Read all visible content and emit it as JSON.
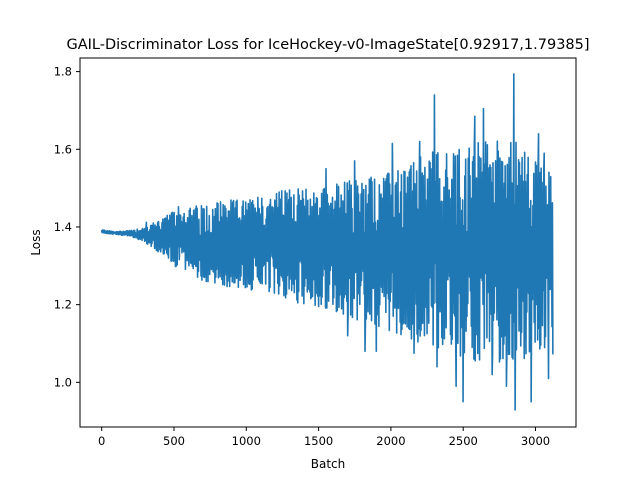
{
  "chart_data": {
    "type": "line",
    "title": "GAIL-Discriminator Loss for IceHockey-v0-ImageState[0.92917,1.79385]",
    "xlabel": "Batch",
    "ylabel": "Loss",
    "xlim": [
      -150,
      3280
    ],
    "ylim": [
      0.885,
      1.835
    ],
    "x_ticks": [
      0,
      500,
      1000,
      1500,
      2000,
      2500,
      3000
    ],
    "y_ticks": [
      1.0,
      1.2,
      1.4,
      1.6,
      1.8
    ],
    "x_tick_labels": [
      "0",
      "500",
      "1000",
      "1500",
      "2000",
      "2500",
      "3000"
    ],
    "y_tick_labels": [
      "1.0",
      "1.2",
      "1.4",
      "1.6",
      "1.8"
    ],
    "grid": false,
    "legend": "none",
    "series": [
      {
        "color": "#1f77b4",
        "note_range": [
          0.92917,
          1.79385
        ],
        "x": [
          0,
          100,
          200,
          300,
          400,
          500,
          600,
          700,
          800,
          900,
          1000,
          1100,
          1200,
          1300,
          1400,
          1500,
          1600,
          1700,
          1800,
          1900,
          2000,
          2100,
          2200,
          2300,
          2400,
          2500,
          2600,
          2700,
          2800,
          2850,
          2900,
          3000,
          3100,
          3120
        ],
        "upper": [
          1.393,
          1.388,
          1.392,
          1.4,
          1.42,
          1.44,
          1.45,
          1.46,
          1.47,
          1.47,
          1.47,
          1.48,
          1.49,
          1.5,
          1.5,
          1.5,
          1.51,
          1.52,
          1.53,
          1.54,
          1.54,
          1.56,
          1.58,
          1.6,
          1.6,
          1.61,
          1.62,
          1.63,
          1.63,
          1.63,
          1.6,
          1.58,
          1.56,
          1.54
        ],
        "lower": [
          1.385,
          1.38,
          1.376,
          1.36,
          1.33,
          1.3,
          1.28,
          1.26,
          1.25,
          1.24,
          1.24,
          1.23,
          1.22,
          1.21,
          1.2,
          1.19,
          1.18,
          1.17,
          1.15,
          1.14,
          1.13,
          1.12,
          1.1,
          1.09,
          1.08,
          1.06,
          1.05,
          1.05,
          1.05,
          1.05,
          1.06,
          1.06,
          1.06,
          1.07
        ],
        "spikes": [
          {
            "x": 310,
            "y": 1.412
          },
          {
            "x": 530,
            "y": 1.452
          },
          {
            "x": 1080,
            "y": 1.476
          },
          {
            "x": 1550,
            "y": 1.55
          },
          {
            "x": 1700,
            "y": 1.12
          },
          {
            "x": 1750,
            "y": 1.57
          },
          {
            "x": 1820,
            "y": 1.08
          },
          {
            "x": 1900,
            "y": 1.08
          },
          {
            "x": 2010,
            "y": 1.615
          },
          {
            "x": 2160,
            "y": 1.075
          },
          {
            "x": 2200,
            "y": 1.62
          },
          {
            "x": 2300,
            "y": 1.74
          },
          {
            "x": 2320,
            "y": 1.04
          },
          {
            "x": 2450,
            "y": 0.99
          },
          {
            "x": 2500,
            "y": 0.95
          },
          {
            "x": 2580,
            "y": 1.685
          },
          {
            "x": 2640,
            "y": 1.705
          },
          {
            "x": 2700,
            "y": 1.02
          },
          {
            "x": 2800,
            "y": 0.99
          },
          {
            "x": 2850,
            "y": 1.794
          },
          {
            "x": 2860,
            "y": 0.929
          },
          {
            "x": 2970,
            "y": 0.95
          },
          {
            "x": 3020,
            "y": 1.64
          },
          {
            "x": 3060,
            "y": 1.59
          },
          {
            "x": 3090,
            "y": 1.01
          }
        ]
      }
    ]
  }
}
